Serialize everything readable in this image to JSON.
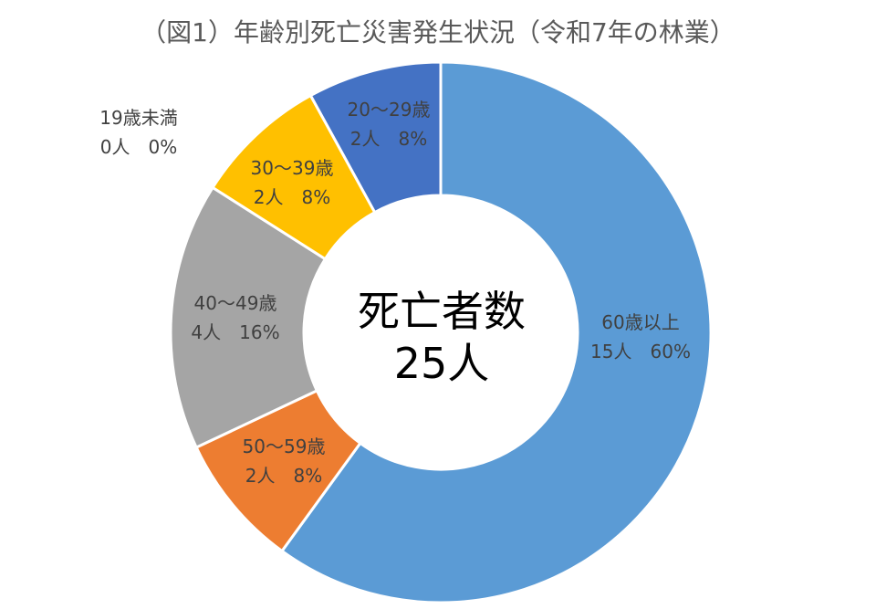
{
  "chart_data": {
    "type": "pie",
    "title": "（図1）年齢別死亡災害発生状況（令和7年の林業）",
    "center_label": [
      "死亡者数",
      "25人"
    ],
    "start_angle_deg": 0,
    "direction": "clockwise",
    "slices": [
      {
        "category": "60歳以上",
        "count": 15,
        "count_label": "15人",
        "percent_label": "60%",
        "color": "#5B9BD5"
      },
      {
        "category": "50～59歳",
        "count": 2,
        "count_label": "2人",
        "percent_label": "8%",
        "color": "#ED7D31"
      },
      {
        "category": "40～49歳",
        "count": 4,
        "count_label": "4人",
        "percent_label": "16%",
        "color": "#A5A5A5"
      },
      {
        "category": "30～39歳",
        "count": 2,
        "count_label": "2人",
        "percent_label": "8%",
        "color": "#FFC000"
      },
      {
        "category": "20～29歳",
        "count": 2,
        "count_label": "2人",
        "percent_label": "8%",
        "color": "#4472C4"
      },
      {
        "category": "19歳未満",
        "count": 0,
        "count_label": "0人",
        "percent_label": "0%",
        "color": "#70AD47"
      }
    ]
  }
}
